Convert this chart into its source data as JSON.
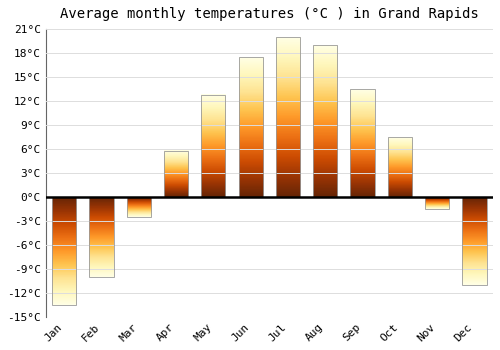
{
  "title": "Average monthly temperatures (°C ) in Grand Rapids",
  "months": [
    "Jan",
    "Feb",
    "Mar",
    "Apr",
    "May",
    "Jun",
    "Jul",
    "Aug",
    "Sep",
    "Oct",
    "Nov",
    "Dec"
  ],
  "temperatures": [
    -13.5,
    -10.0,
    -2.5,
    5.8,
    12.8,
    17.5,
    20.0,
    19.0,
    13.5,
    7.5,
    -1.5,
    -11.0
  ],
  "bar_color_top": "#FFB700",
  "bar_color_bottom": "#FFA000",
  "bar_edge_color": "#999999",
  "background_color": "#FFFFFF",
  "ylim": [
    -15,
    21
  ],
  "yticks": [
    -15,
    -12,
    -9,
    -6,
    -3,
    0,
    3,
    6,
    9,
    12,
    15,
    18,
    21
  ],
  "ytick_labels": [
    "-15°C",
    "-12°C",
    "-9°C",
    "-6°C",
    "-3°C",
    "0°C",
    "3°C",
    "6°C",
    "9°C",
    "12°C",
    "15°C",
    "18°C",
    "21°C"
  ],
  "title_fontsize": 10,
  "tick_fontsize": 8,
  "grid_color": "#DDDDDD",
  "bar_width": 0.65
}
